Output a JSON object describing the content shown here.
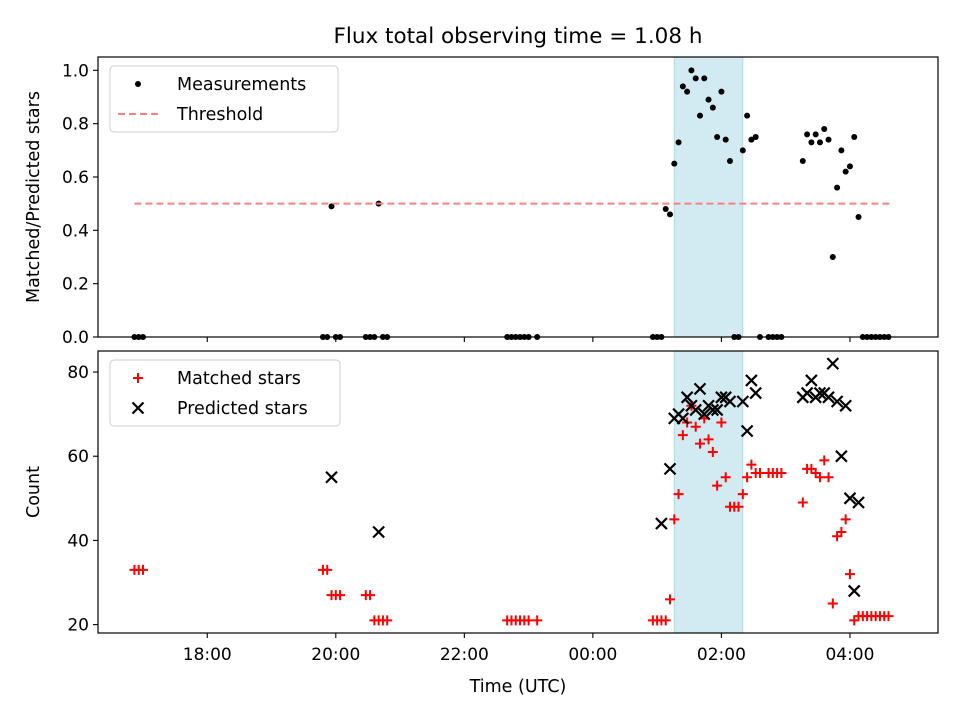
{
  "title": "Flux total observing time = 1.08 h",
  "chart_data": [
    {
      "type": "scatter",
      "ylabel": "Matched/Predicted stars",
      "ylim": [
        0,
        1.05
      ],
      "yticks": [
        0.0,
        0.2,
        0.4,
        0.6,
        0.8,
        1.0
      ],
      "ytick_labels": [
        "0.0",
        "0.2",
        "0.4",
        "0.6",
        "0.8",
        "1.0"
      ],
      "legend": {
        "placement": "top-left",
        "entries": [
          "Measurements",
          "Threshold"
        ]
      },
      "series": [
        {
          "name": "Measurements",
          "marker": "dot",
          "color": "#000000",
          "points": [
            [
              "16:52",
              0
            ],
            [
              "16:56",
              0
            ],
            [
              "17:00",
              0
            ],
            [
              "19:48",
              0
            ],
            [
              "19:52",
              0
            ],
            [
              "19:56",
              0.49
            ],
            [
              "20:00",
              0
            ],
            [
              "20:04",
              0
            ],
            [
              "20:28",
              0
            ],
            [
              "20:32",
              0
            ],
            [
              "20:36",
              0
            ],
            [
              "20:40",
              0.5
            ],
            [
              "20:44",
              0
            ],
            [
              "20:48",
              0
            ],
            [
              "22:40",
              0
            ],
            [
              "22:44",
              0
            ],
            [
              "22:48",
              0
            ],
            [
              "22:52",
              0
            ],
            [
              "22:56",
              0
            ],
            [
              "23:00",
              0
            ],
            [
              "23:08",
              0
            ],
            [
              "00:56",
              0
            ],
            [
              "01:00",
              0
            ],
            [
              "01:04",
              0
            ],
            [
              "01:08",
              0.48
            ],
            [
              "01:12",
              0.46
            ],
            [
              "01:16",
              0.65
            ],
            [
              "01:20",
              0.73
            ],
            [
              "01:24",
              0.94
            ],
            [
              "01:28",
              0.92
            ],
            [
              "01:32",
              1.0
            ],
            [
              "01:36",
              0.97
            ],
            [
              "01:40",
              0.83
            ],
            [
              "01:44",
              0.97
            ],
            [
              "01:48",
              0.89
            ],
            [
              "01:52",
              0.86
            ],
            [
              "01:56",
              0.75
            ],
            [
              "02:00",
              0.92
            ],
            [
              "02:04",
              0.74
            ],
            [
              "02:08",
              0.66
            ],
            [
              "02:12",
              0
            ],
            [
              "02:16",
              0
            ],
            [
              "02:20",
              0.7
            ],
            [
              "02:24",
              0.83
            ],
            [
              "02:28",
              0.74
            ],
            [
              "02:32",
              0.75
            ],
            [
              "02:36",
              0
            ],
            [
              "02:44",
              0
            ],
            [
              "02:48",
              0
            ],
            [
              "02:52",
              0
            ],
            [
              "02:56",
              0
            ],
            [
              "03:16",
              0.66
            ],
            [
              "03:20",
              0.76
            ],
            [
              "03:24",
              0.73
            ],
            [
              "03:28",
              0.76
            ],
            [
              "03:32",
              0.73
            ],
            [
              "03:36",
              0.78
            ],
            [
              "03:40",
              0.74
            ],
            [
              "03:44",
              0.3
            ],
            [
              "03:48",
              0.56
            ],
            [
              "03:52",
              0.7
            ],
            [
              "03:56",
              0.62
            ],
            [
              "04:00",
              0.64
            ],
            [
              "04:04",
              0.75
            ],
            [
              "04:08",
              0.45
            ],
            [
              "04:12",
              0
            ],
            [
              "04:16",
              0
            ],
            [
              "04:20",
              0
            ],
            [
              "04:24",
              0
            ],
            [
              "04:28",
              0
            ],
            [
              "04:32",
              0
            ],
            [
              "04:36",
              0
            ]
          ]
        },
        {
          "name": "Threshold",
          "marker": "dashed-line",
          "color": "#ff7f7f",
          "points": [
            [
              "16:52",
              0.5
            ],
            [
              "04:40",
              0.5
            ]
          ]
        }
      ],
      "highlight_span": {
        "x": [
          "01:16",
          "02:20"
        ],
        "color": "#add8e6"
      }
    },
    {
      "type": "scatter",
      "ylabel": "Count",
      "ylim": [
        18,
        85
      ],
      "yticks": [
        20,
        40,
        60,
        80
      ],
      "ytick_labels": [
        "20",
        "40",
        "60",
        "80"
      ],
      "xlabel": "Time (UTC)",
      "xticks": [
        "18:00",
        "20:00",
        "22:00",
        "00:00",
        "02:00",
        "04:00"
      ],
      "legend": {
        "placement": "top-left",
        "entries": [
          "Matched stars",
          "Predicted stars"
        ]
      },
      "series": [
        {
          "name": "Matched stars",
          "marker": "plus",
          "color": "#ff0000",
          "points": [
            [
              "16:52",
              33
            ],
            [
              "16:56",
              33
            ],
            [
              "17:00",
              33
            ],
            [
              "19:48",
              33
            ],
            [
              "19:52",
              33
            ],
            [
              "19:56",
              27
            ],
            [
              "20:00",
              27
            ],
            [
              "20:04",
              27
            ],
            [
              "20:28",
              27
            ],
            [
              "20:32",
              27
            ],
            [
              "20:36",
              21
            ],
            [
              "20:40",
              21
            ],
            [
              "20:44",
              21
            ],
            [
              "20:48",
              21
            ],
            [
              "22:40",
              21
            ],
            [
              "22:44",
              21
            ],
            [
              "22:48",
              21
            ],
            [
              "22:52",
              21
            ],
            [
              "22:56",
              21
            ],
            [
              "23:00",
              21
            ],
            [
              "23:08",
              21
            ],
            [
              "00:56",
              21
            ],
            [
              "01:00",
              21
            ],
            [
              "01:04",
              21
            ],
            [
              "01:08",
              21
            ],
            [
              "01:12",
              26
            ],
            [
              "01:16",
              45
            ],
            [
              "01:20",
              51
            ],
            [
              "01:24",
              65
            ],
            [
              "01:28",
              68
            ],
            [
              "01:32",
              72
            ],
            [
              "01:36",
              67
            ],
            [
              "01:40",
              63
            ],
            [
              "01:44",
              69
            ],
            [
              "01:48",
              64
            ],
            [
              "01:52",
              61
            ],
            [
              "01:56",
              53
            ],
            [
              "02:00",
              68
            ],
            [
              "02:04",
              55
            ],
            [
              "02:08",
              48
            ],
            [
              "02:12",
              48
            ],
            [
              "02:16",
              48
            ],
            [
              "02:20",
              51
            ],
            [
              "02:24",
              55
            ],
            [
              "02:28",
              58
            ],
            [
              "02:32",
              56
            ],
            [
              "02:36",
              56
            ],
            [
              "02:44",
              56
            ],
            [
              "02:48",
              56
            ],
            [
              "02:52",
              56
            ],
            [
              "02:56",
              56
            ],
            [
              "03:16",
              49
            ],
            [
              "03:20",
              57
            ],
            [
              "03:24",
              57
            ],
            [
              "03:28",
              56
            ],
            [
              "03:32",
              55
            ],
            [
              "03:36",
              59
            ],
            [
              "03:40",
              55
            ],
            [
              "03:44",
              25
            ],
            [
              "03:48",
              41
            ],
            [
              "03:52",
              42
            ],
            [
              "03:56",
              45
            ],
            [
              "04:00",
              32
            ],
            [
              "04:04",
              21
            ],
            [
              "04:08",
              22
            ],
            [
              "04:12",
              22
            ],
            [
              "04:16",
              22
            ],
            [
              "04:20",
              22
            ],
            [
              "04:24",
              22
            ],
            [
              "04:28",
              22
            ],
            [
              "04:32",
              22
            ],
            [
              "04:36",
              22
            ]
          ]
        },
        {
          "name": "Predicted stars",
          "marker": "x",
          "color": "#000000",
          "points": [
            [
              "19:56",
              55
            ],
            [
              "20:40",
              42
            ],
            [
              "01:04",
              44
            ],
            [
              "01:12",
              57
            ],
            [
              "01:16",
              69
            ],
            [
              "01:20",
              70
            ],
            [
              "01:24",
              69
            ],
            [
              "01:28",
              74
            ],
            [
              "01:32",
              72
            ],
            [
              "01:36",
              71
            ],
            [
              "01:40",
              76
            ],
            [
              "01:44",
              70
            ],
            [
              "01:48",
              72
            ],
            [
              "01:52",
              71
            ],
            [
              "01:56",
              71
            ],
            [
              "02:00",
              74
            ],
            [
              "02:04",
              74
            ],
            [
              "02:08",
              73
            ],
            [
              "02:20",
              73
            ],
            [
              "02:24",
              66
            ],
            [
              "02:28",
              78
            ],
            [
              "02:32",
              75
            ],
            [
              "03:16",
              74
            ],
            [
              "03:20",
              75
            ],
            [
              "03:24",
              78
            ],
            [
              "03:28",
              74
            ],
            [
              "03:32",
              75
            ],
            [
              "03:36",
              75
            ],
            [
              "03:40",
              74
            ],
            [
              "03:44",
              82
            ],
            [
              "03:48",
              73
            ],
            [
              "03:52",
              60
            ],
            [
              "03:56",
              72
            ],
            [
              "04:00",
              50
            ],
            [
              "04:04",
              28
            ],
            [
              "04:08",
              49
            ]
          ]
        }
      ],
      "highlight_span": {
        "x": [
          "01:16",
          "02:20"
        ],
        "color": "#add8e6"
      }
    }
  ]
}
